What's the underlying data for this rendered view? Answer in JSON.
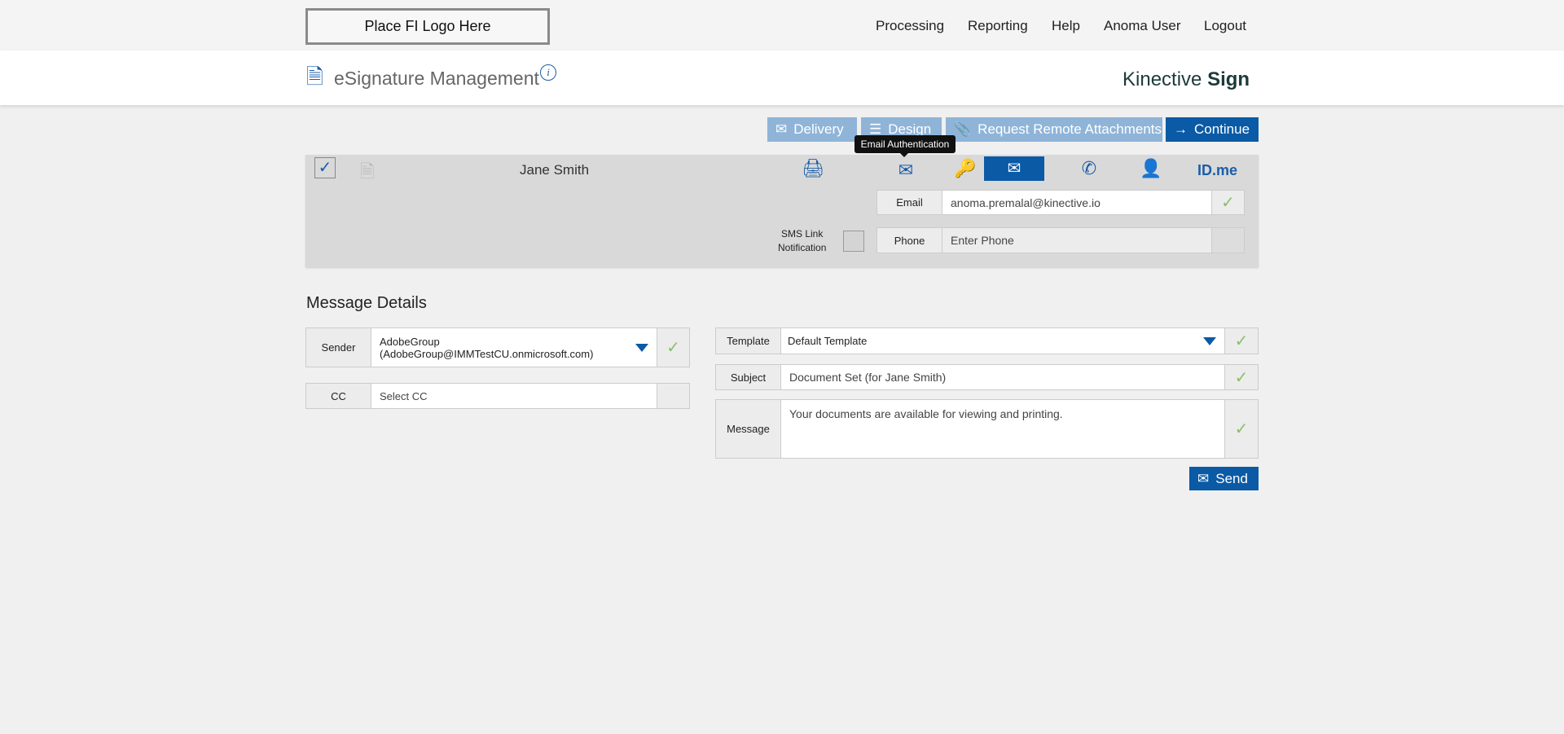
{
  "topbar": {
    "logo_placeholder": "Place FI Logo Here",
    "nav": [
      "Processing",
      "Reporting",
      "Help",
      "Anoma User",
      "Logout"
    ]
  },
  "header": {
    "title": "eSignature Management",
    "brand_light": "Kinective",
    "brand_bold": "Sign"
  },
  "toolbar": {
    "delivery": "Delivery",
    "design": "Design",
    "request_attachments": "Request Remote Attachments",
    "continue": "Continue"
  },
  "recipient": {
    "name": "Jane Smith",
    "tooltip": "Email Authentication",
    "idme": "ID.me",
    "email_label": "Email",
    "email_value": "anoma.premalal@kinective.io",
    "sms_label_1": "SMS Link",
    "sms_label_2": "Notification",
    "phone_label": "Phone",
    "phone_placeholder": "Enter Phone"
  },
  "message": {
    "heading": "Message Details",
    "sender_label": "Sender",
    "sender_line1": "AdobeGroup",
    "sender_line2": "(AdobeGroup@IMMTestCU.onmicrosoft.com)",
    "cc_label": "CC",
    "cc_placeholder": "Select CC",
    "template_label": "Template",
    "template_value": "Default Template",
    "subject_label": "Subject",
    "subject_value": "Document Set (for Jane Smith)",
    "message_label": "Message",
    "message_value": "Your documents are available for viewing and printing.",
    "send": "Send"
  },
  "colors": {
    "primary": "#0a5aa6",
    "disabled_button": "#8fb4d8",
    "check": "#8bbf6a"
  }
}
